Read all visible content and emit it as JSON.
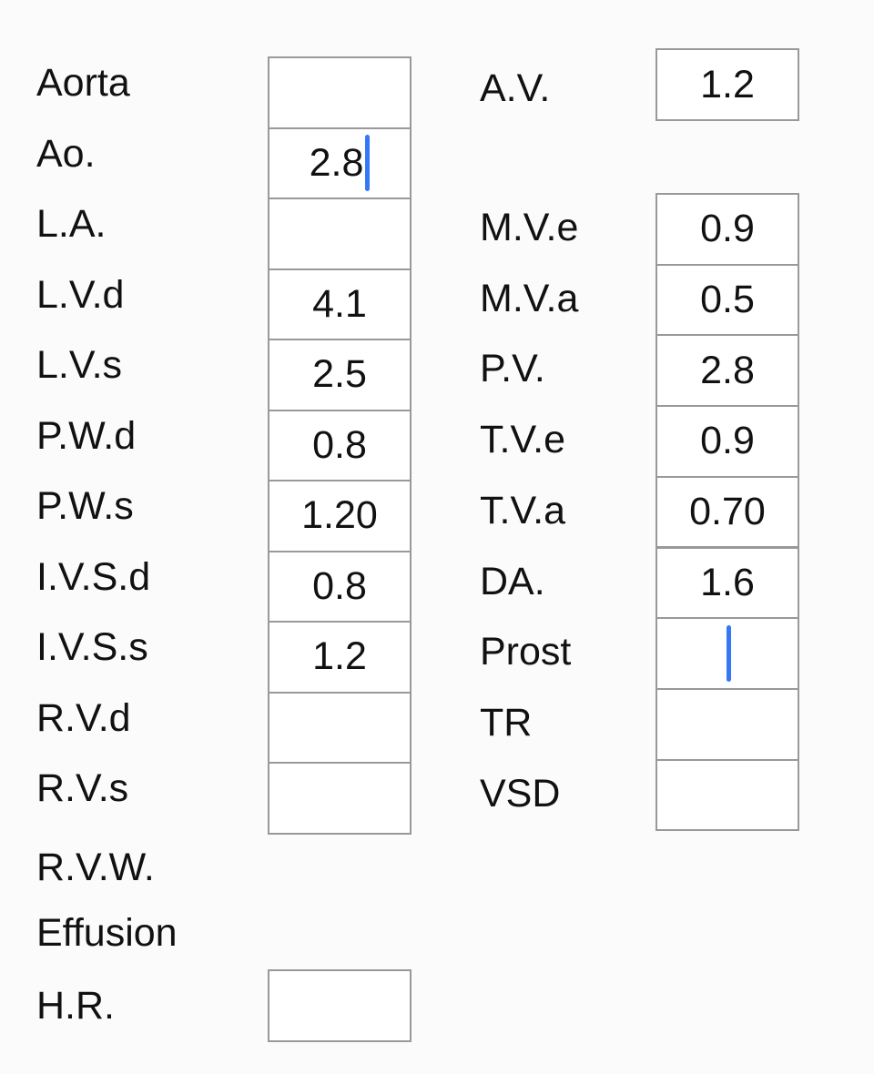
{
  "left_group": [
    {
      "label": "Aorta"
    },
    {
      "label": "Ao.",
      "value": "2.8"
    },
    {
      "label": "L.A."
    },
    {
      "label": "L.V.d",
      "value": "4.1"
    },
    {
      "label": "L.V.s",
      "value": "2.5"
    },
    {
      "label": "P.W.d",
      "value": "0.8"
    },
    {
      "label": "P.W.s",
      "value": "1.20"
    },
    {
      "label": "I.V.S.d",
      "value": "0.8"
    },
    {
      "label": "I.V.S.s",
      "value": "1.2"
    },
    {
      "label": "R.V.d"
    },
    {
      "label": "R.V.s"
    }
  ],
  "notes": [
    "R.V.W.",
    "Effusion"
  ],
  "hr": {
    "label": "H.R."
  },
  "av": {
    "label": "A.V.",
    "value": "1.2"
  },
  "right_group": [
    {
      "label": "M.V.e",
      "value": "0.9"
    },
    {
      "label": "M.V.a",
      "value": "0.5"
    },
    {
      "label": "P.V.",
      "value": "2.8"
    },
    {
      "label": "T.V.e",
      "value": "0.9"
    },
    {
      "label": "T.V.a",
      "value": "0.70"
    },
    {
      "label": "DA.",
      "value": "1.6"
    },
    {
      "label": "Prost"
    },
    {
      "label": "TR"
    },
    {
      "label": "VSD"
    }
  ]
}
